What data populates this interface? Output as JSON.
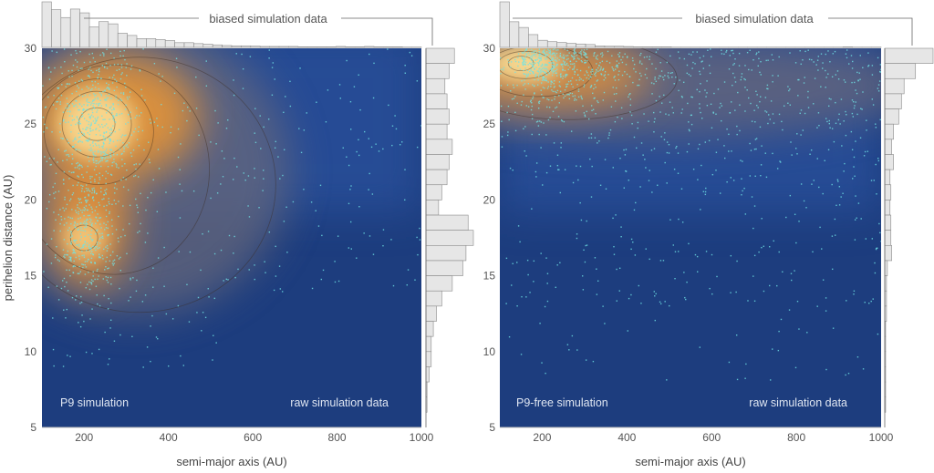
{
  "ylabel": "perihelion distance (AU)",
  "chart_data": [
    {
      "type": "scatter",
      "id": "left",
      "title": "P9 simulation",
      "annotation": "raw simulation data",
      "callout": "biased simulation data",
      "xlabel": "semi-major axis (AU)",
      "ylabel": "perihelion distance (AU)",
      "xlim": [
        100,
        1000
      ],
      "ylim": [
        5,
        30
      ],
      "xticks": [
        "200",
        "400",
        "600",
        "800",
        "1000"
      ],
      "yticks": [
        "5",
        "10",
        "15",
        "20",
        "25",
        "30"
      ],
      "density_peaks": [
        {
          "a": 230,
          "q": 25
        },
        {
          "a": 200,
          "q": 17.5
        }
      ],
      "x_histogram": [
        145,
        120,
        95,
        122,
        110,
        65,
        82,
        75,
        45,
        38,
        28,
        28,
        25,
        22,
        15,
        15,
        12,
        10,
        8,
        6,
        5,
        5,
        4,
        3,
        3,
        3,
        3,
        2,
        2,
        2,
        2,
        3,
        2,
        2,
        3,
        2,
        2,
        2,
        1,
        1
      ],
      "y_histogram_top_to_bottom": [
        27,
        22,
        18,
        20,
        22,
        20,
        25,
        22,
        20,
        15,
        12,
        40,
        45,
        38,
        35,
        25,
        15,
        10,
        7,
        5,
        5,
        3,
        1,
        1,
        0
      ],
      "colors": {
        "background": "#1d3d7e",
        "density_high": "#f6c46a",
        "points": "#6fe3e6"
      }
    },
    {
      "type": "scatter",
      "id": "right",
      "title": "P9-free simulation",
      "annotation": "raw simulation data",
      "callout": "biased simulation data",
      "xlabel": "semi-major axis (AU)",
      "ylabel": "perihelion distance (AU)",
      "xlim": [
        100,
        1000
      ],
      "ylim": [
        5,
        30
      ],
      "xticks": [
        "200",
        "400",
        "600",
        "800",
        "1000"
      ],
      "yticks": [
        "5",
        "10",
        "15",
        "20",
        "25",
        "30"
      ],
      "density_peaks": [
        {
          "a": 150,
          "q": 29
        }
      ],
      "x_histogram": [
        160,
        90,
        70,
        45,
        25,
        20,
        17,
        14,
        12,
        10,
        5,
        4,
        4,
        3,
        2,
        2,
        2,
        2,
        1,
        1,
        1,
        1,
        1,
        1,
        1,
        1,
        1,
        1,
        1,
        1,
        1,
        1,
        1,
        1,
        1,
        1,
        2,
        1,
        1,
        1
      ],
      "y_histogram_top_to_bottom": [
        55,
        35,
        22,
        19,
        16,
        10,
        8,
        10,
        6,
        7,
        6,
        7,
        7,
        8,
        3,
        2,
        2,
        2,
        1,
        1,
        1,
        1,
        1,
        1,
        0
      ],
      "colors": {
        "background": "#1d3d7e",
        "density_high": "#f6c46a",
        "points": "#6fe3e6"
      }
    }
  ]
}
